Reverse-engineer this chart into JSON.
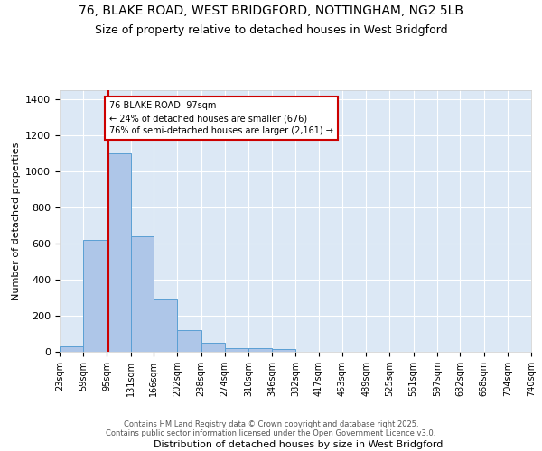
{
  "title_line1": "76, BLAKE ROAD, WEST BRIDGFORD, NOTTINGHAM, NG2 5LB",
  "title_line2": "Size of property relative to detached houses in West Bridgford",
  "xlabel": "Distribution of detached houses by size in West Bridgford",
  "ylabel": "Number of detached properties",
  "bin_edges": [
    23,
    59,
    95,
    131,
    166,
    202,
    238,
    274,
    310,
    346,
    382,
    417,
    453,
    489,
    525,
    561,
    597,
    632,
    668,
    704,
    740
  ],
  "bar_heights": [
    30,
    620,
    1100,
    640,
    290,
    120,
    50,
    20,
    20,
    15,
    0,
    0,
    0,
    0,
    0,
    0,
    0,
    0,
    0,
    0
  ],
  "bar_color": "#aec6e8",
  "bar_edge_color": "#5a9fd4",
  "property_size": 97,
  "vline_color": "#cc0000",
  "annotation_text": "76 BLAKE ROAD: 97sqm\n← 24% of detached houses are smaller (676)\n76% of semi-detached houses are larger (2,161) →",
  "annotation_box_color": "#ffffff",
  "annotation_box_edge_color": "#cc0000",
  "ylim": [
    0,
    1450
  ],
  "yticks": [
    0,
    200,
    400,
    600,
    800,
    1000,
    1200,
    1400
  ],
  "bg_color": "#dce8f5",
  "footer_text": "Contains HM Land Registry data © Crown copyright and database right 2025.\nContains public sector information licensed under the Open Government Licence v3.0.",
  "title_fontsize": 10,
  "subtitle_fontsize": 9,
  "tick_fontsize": 7,
  "ylabel_fontsize": 8,
  "xlabel_fontsize": 8,
  "footer_fontsize": 6
}
